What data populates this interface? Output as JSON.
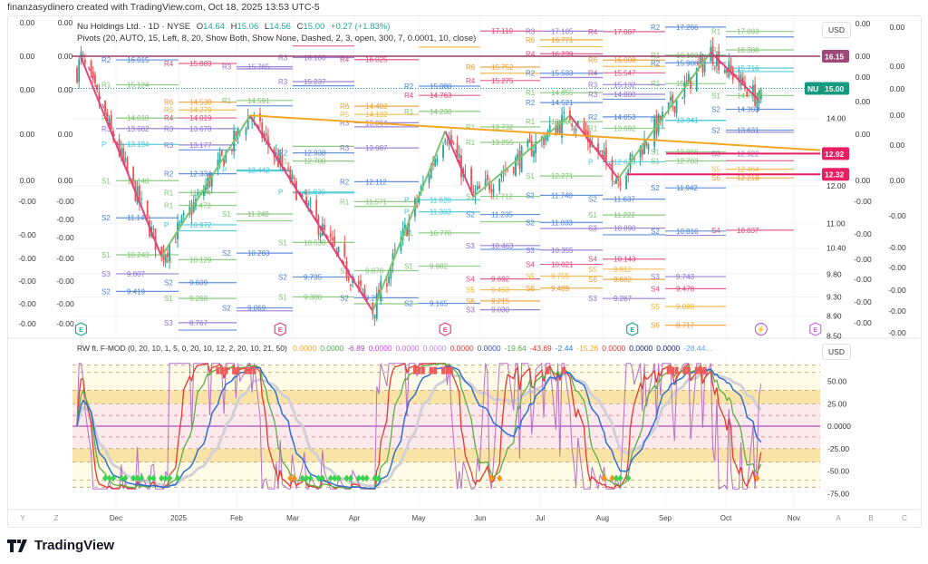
{
  "header": {
    "credit": "finanzasydinero created with TradingView.com, Oct 18, 2025 13:53 UTC-5"
  },
  "legend": {
    "symbol": "Nu Holdings Ltd. · 1D · NYSE",
    "o_label": "O",
    "o": "14.64",
    "h_label": "H",
    "h": "15.06",
    "l_label": "L",
    "l": "14.56",
    "c_label": "C",
    "c": "15.00",
    "change": "+0.27 (+1.83%)",
    "pivots": "Pivots (20, AUTO, 15, Left, 8, 20, Show Both, Show None, Dashed, 2, 3, open, 300, 7, 0.0001, 10, close)"
  },
  "indicator": {
    "name": "RW ft. F-MOD (0, 20, 10, 1, 5, 0, 20, 10, 12, 2, 20, 10, 21, 50)",
    "values": [
      {
        "v": "0.0000",
        "color": "#f5a623"
      },
      {
        "v": "0.0000",
        "color": "#4caf50"
      },
      {
        "v": "-6.89",
        "color": "#9c4fb0"
      },
      {
        "v": "0.0000",
        "color": "#e040fb"
      },
      {
        "v": "0.0000",
        "color": "#c86be8"
      },
      {
        "v": "0.0000",
        "color": "#b98ce0"
      },
      {
        "v": "0.0000",
        "color": "#e53935"
      },
      {
        "v": "0.0000",
        "color": "#3f51b5"
      },
      {
        "v": "-19.64",
        "color": "#4caf50"
      },
      {
        "v": "-43.69",
        "color": "#e53935"
      },
      {
        "v": "-2.44",
        "color": "#2f7de1"
      },
      {
        "v": "-15.26",
        "color": "#f5a623"
      },
      {
        "v": "0.0000",
        "color": "#e53935"
      },
      {
        "v": "0.0000",
        "color": "#1a237e"
      },
      {
        "v": "0.0000",
        "color": "#1a237e"
      },
      {
        "v": "-28.44...",
        "color": "#64a0e8"
      }
    ],
    "axis": [
      "50.00",
      "25.00",
      "0.0000",
      "-25.00",
      "-50.00",
      "-75.00"
    ],
    "currency": "USD"
  },
  "price_axis": {
    "currency": "USD",
    "labels": [
      "14.00",
      "12.00",
      "11.00",
      "10.40",
      "9.80",
      "9.30",
      "8.90",
      "8.50"
    ],
    "badges": [
      {
        "text": "16.15",
        "color": "#a0487a"
      },
      {
        "symbol": "NU",
        "text": "15.00",
        "color": "#159a80"
      },
      {
        "text": "12.92",
        "color": "#e91e63"
      },
      {
        "text": "12.32",
        "color": "#e91e63"
      }
    ]
  },
  "extra_scales": {
    "left1": [
      "0.00",
      "0.00",
      "0.00",
      "0.00",
      "0.00",
      "-0.00",
      "-0.00",
      "-0.00",
      "-0.00",
      "-0.00",
      "-0.00"
    ],
    "left2": [
      "0.00",
      "0.00",
      "0.00",
      "0.00",
      "0.00",
      "-0.00",
      "-0.00",
      "-0.00",
      "-0.00",
      "-0.00",
      "-0.00",
      "-0.00"
    ],
    "right1": [
      "0.00",
      "0.00",
      "0.00",
      "0.00",
      "0.00",
      "0.00",
      "-0.00",
      "-0.00",
      "-0.00",
      "-0.00",
      "-0.00",
      "-0.00"
    ],
    "right2": [
      "0.00",
      "0.00",
      "0.00",
      "0.00",
      "0.00",
      "0.00",
      "-0.00",
      "-0.00",
      "-0.00",
      "-0.00",
      "-0.00",
      "-0.00"
    ]
  },
  "time_axis": [
    "Y",
    "Z",
    "Dec",
    "2025",
    "Feb",
    "Mar",
    "Apr",
    "May",
    "Jun",
    "Jul",
    "Aug",
    "Sep",
    "Oct",
    "Nov",
    "A",
    "B",
    "C"
  ],
  "brand": "TradingView",
  "colors": {
    "up": "#26a69a",
    "down": "#ef5350",
    "zig_up": "#7cc46f",
    "zig_down": "#e0457b",
    "trend": "#f5a623",
    "resistance": "#9c3d6b",
    "support": "#e91e63"
  },
  "chart_data": {
    "type": "candlestick",
    "scale": "log",
    "ylim": [
      8.5,
      17.5
    ],
    "xlim": [
      "2024-11-08",
      "2025-11-15"
    ],
    "swing_points": [
      {
        "date": "2024-11-11",
        "price": 15.6
      },
      {
        "date": "2024-11-13",
        "price": 16.1
      },
      {
        "date": "2024-12-23",
        "price": 10.2
      },
      {
        "date": "2025-02-05",
        "price": 14.1
      },
      {
        "date": "2025-04-07",
        "price": 9.0
      },
      {
        "date": "2025-05-13",
        "price": 13.6
      },
      {
        "date": "2025-05-27",
        "price": 11.7
      },
      {
        "date": "2025-07-14",
        "price": 14.1
      },
      {
        "date": "2025-08-07",
        "price": 12.2
      },
      {
        "date": "2025-09-22",
        "price": 16.3
      },
      {
        "date": "2025-10-16",
        "price": 14.6
      },
      {
        "date": "2025-10-17",
        "price": 15.0
      }
    ],
    "last": {
      "open": 14.64,
      "high": 15.06,
      "low": 14.56,
      "close": 15.0
    },
    "horizontal_levels": [
      16.15,
      12.92,
      12.32
    ],
    "trendline": [
      {
        "date": "2025-02-05",
        "price": 14.1
      },
      {
        "date": "2025-11-12",
        "price": 13.0
      }
    ],
    "pivot_months": [
      "Nov",
      "Dec",
      "Jan",
      "Feb",
      "Mar",
      "Apr",
      "May",
      "Jun",
      "Jul",
      "Aug",
      "Sep",
      "Oct"
    ],
    "pivots": [
      {
        "m": 1,
        "l": "R3",
        "v": 16.969
      },
      {
        "m": 1,
        "l": "R2",
        "v": 16.015
      },
      {
        "m": 1,
        "l": "R1",
        "v": 15.124
      },
      {
        "m": 1,
        "l": "R1",
        "v": 14.018
      },
      {
        "m": 1,
        "l": "R3",
        "v": 13.682
      },
      {
        "m": 1,
        "l": "P",
        "v": 13.194
      },
      {
        "m": 1,
        "l": "S1",
        "v": 12.14
      },
      {
        "m": 1,
        "l": "S2",
        "v": 11.149
      },
      {
        "m": 1,
        "l": "S1",
        "v": 10.243
      },
      {
        "m": 1,
        "l": "S3",
        "v": 9.807
      },
      {
        "m": 1,
        "l": "S2",
        "v": 9.419
      },
      {
        "m": 2,
        "l": "R4",
        "v": 15.883
      },
      {
        "m": 2,
        "l": "R6",
        "v": 14.539
      },
      {
        "m": 2,
        "l": "R5",
        "v": 14.279
      },
      {
        "m": 2,
        "l": "R4",
        "v": 14.019
      },
      {
        "m": 2,
        "l": "R3",
        "v": 13.678
      },
      {
        "m": 2,
        "l": "R3",
        "v": 13.177
      },
      {
        "m": 2,
        "l": "R2",
        "v": 13.029
      },
      {
        "m": 2,
        "l": "R2",
        "v": 12.334
      },
      {
        "m": 2,
        "l": "R1",
        "v": 11.814
      },
      {
        "m": 2,
        "l": "R1",
        "v": 11.473
      },
      {
        "m": 2,
        "l": "P",
        "v": 10.972
      },
      {
        "m": 2,
        "l": "P",
        "v": 10.824
      },
      {
        "m": 2,
        "l": "S1",
        "v": 10.129
      },
      {
        "m": 2,
        "l": "S2",
        "v": 9.609
      },
      {
        "m": 2,
        "l": "S1",
        "v": 9.268
      },
      {
        "m": 2,
        "l": "S3",
        "v": 8.767
      },
      {
        "m": 2,
        "l": "S2",
        "v": 8.619
      },
      {
        "m": 3,
        "l": "R4",
        "v": 16.969
      },
      {
        "m": 3,
        "l": "R3",
        "v": 15.765
      },
      {
        "m": 3,
        "l": "R3",
        "v": 15.692
      },
      {
        "m": 3,
        "l": "R1",
        "v": 14.591
      },
      {
        "m": 3,
        "l": "R2",
        "v": 14.415
      },
      {
        "m": 3,
        "l": "P",
        "v": 12.442
      },
      {
        "m": 3,
        "l": "P",
        "v": 12.413
      },
      {
        "m": 3,
        "l": "S1",
        "v": 11.248
      },
      {
        "m": 3,
        "l": "S1",
        "v": 11.072
      },
      {
        "m": 3,
        "l": "S2",
        "v": 10.283
      },
      {
        "m": 3,
        "l": "S2",
        "v": 9.069
      },
      {
        "m": 3,
        "l": "S3",
        "v": 9.008
      },
      {
        "m": 4,
        "l": "R4",
        "v": 16.535
      },
      {
        "m": 4,
        "l": "R3",
        "v": 16.1
      },
      {
        "m": 4,
        "l": "R3",
        "v": 15.237
      },
      {
        "m": 4,
        "l": "R2",
        "v": 15.09
      },
      {
        "m": 4,
        "l": "R2",
        "v": 12.938
      },
      {
        "m": 4,
        "l": "R1",
        "v": 13.135
      },
      {
        "m": 4,
        "l": "R1",
        "v": 12.7
      },
      {
        "m": 4,
        "l": "P",
        "v": 11.83
      },
      {
        "m": 4,
        "l": "P",
        "v": 11.8
      },
      {
        "m": 4,
        "l": "S1",
        "v": 10.538
      },
      {
        "m": 4,
        "l": "S2",
        "v": 9.735
      },
      {
        "m": 4,
        "l": "S1",
        "v": 9.3
      },
      {
        "m": 5,
        "l": "R4",
        "v": 16.025
      },
      {
        "m": 5,
        "l": "R6",
        "v": 14.402
      },
      {
        "m": 5,
        "l": "R5",
        "v": 14.132
      },
      {
        "m": 5,
        "l": "R3",
        "v": 13.864
      },
      {
        "m": 5,
        "l": "R3",
        "v": 13.735
      },
      {
        "m": 5,
        "l": "R3",
        "v": 13.087
      },
      {
        "m": 5,
        "l": "R2",
        "v": 12.112
      },
      {
        "m": 5,
        "l": "R1",
        "v": 11.571
      },
      {
        "m": 5,
        "l": "R1",
        "v": 11.445
      },
      {
        "m": 5,
        "l": "S1",
        "v": 9.878
      },
      {
        "m": 5,
        "l": "S2",
        "v": 9.281
      },
      {
        "m": 5,
        "l": "S1",
        "v": 9.155
      },
      {
        "m": 6,
        "l": "R5",
        "v": 16.493
      },
      {
        "m": 6,
        "l": "R2",
        "v": 15.08
      },
      {
        "m": 6,
        "l": "R4",
        "v": 14.763
      },
      {
        "m": 6,
        "l": "R1",
        "v": 14.23
      },
      {
        "m": 6,
        "l": "P",
        "v": 11.62
      },
      {
        "m": 6,
        "l": "P",
        "v": 11.303
      },
      {
        "m": 6,
        "l": "S1",
        "v": 10.77
      },
      {
        "m": 6,
        "l": "S1",
        "v": 9.982
      },
      {
        "m": 6,
        "l": "S2",
        "v": 9.165
      },
      {
        "m": 7,
        "l": "R4",
        "v": 17.11
      },
      {
        "m": 7,
        "l": "R6",
        "v": 15.752
      },
      {
        "m": 7,
        "l": "R5",
        "v": 15.533
      },
      {
        "m": 7,
        "l": "R4",
        "v": 15.275
      },
      {
        "m": 7,
        "l": "R1",
        "v": 13.732
      },
      {
        "m": 7,
        "l": "R1",
        "v": 13.255
      },
      {
        "m": 7,
        "l": "S1",
        "v": 11.712
      },
      {
        "m": 7,
        "l": "S2",
        "v": 11.235
      },
      {
        "m": 7,
        "l": "S1",
        "v": 11.05
      },
      {
        "m": 7,
        "l": "S3",
        "v": 10.463
      },
      {
        "m": 7,
        "l": "S2",
        "v": 10.37
      },
      {
        "m": 7,
        "l": "S4",
        "v": 9.692
      },
      {
        "m": 7,
        "l": "S5",
        "v": 9.453
      },
      {
        "m": 7,
        "l": "S6",
        "v": 9.215
      },
      {
        "m": 7,
        "l": "S3",
        "v": 9.03
      },
      {
        "m": 8,
        "l": "R3",
        "v": 17.105
      },
      {
        "m": 8,
        "l": "R6",
        "v": 16.771
      },
      {
        "m": 8,
        "l": "R5",
        "v": 16.505
      },
      {
        "m": 8,
        "l": "R4",
        "v": 16.239
      },
      {
        "m": 8,
        "l": "R2",
        "v": 15.533
      },
      {
        "m": 8,
        "l": "R3",
        "v": 15.38
      },
      {
        "m": 8,
        "l": "R1",
        "v": 14.855
      },
      {
        "m": 8,
        "l": "R2",
        "v": 14.521
      },
      {
        "m": 8,
        "l": "R1",
        "v": 13.9
      },
      {
        "m": 8,
        "l": "S1",
        "v": 12.271
      },
      {
        "m": 8,
        "l": "S2",
        "v": 11.74
      },
      {
        "m": 8,
        "l": "S2",
        "v": 11.033
      },
      {
        "m": 8,
        "l": "S3",
        "v": 10.88
      },
      {
        "m": 8,
        "l": "S3",
        "v": 10.355
      },
      {
        "m": 8,
        "l": "S4",
        "v": 10.021
      },
      {
        "m": 8,
        "l": "S5",
        "v": 9.755
      },
      {
        "m": 8,
        "l": "S6",
        "v": 9.489
      },
      {
        "m": 9,
        "l": "R4",
        "v": 17.087
      },
      {
        "m": 9,
        "l": "R6",
        "v": 16.008
      },
      {
        "m": 9,
        "l": "R5",
        "v": 15.777
      },
      {
        "m": 9,
        "l": "R4",
        "v": 15.547
      },
      {
        "m": 9,
        "l": "R3",
        "v": 15.132
      },
      {
        "m": 9,
        "l": "R3",
        "v": 14.8
      },
      {
        "m": 9,
        "l": "R2",
        "v": 14.634
      },
      {
        "m": 9,
        "l": "R2",
        "v": 14.053
      },
      {
        "m": 9,
        "l": "R1",
        "v": 13.692
      },
      {
        "m": 9,
        "l": "P",
        "v": 12.678
      },
      {
        "m": 9,
        "l": "S2",
        "v": 11.637
      },
      {
        "m": 9,
        "l": "S1",
        "v": 11.222
      },
      {
        "m": 9,
        "l": "S3",
        "v": 10.89
      },
      {
        "m": 9,
        "l": "S2",
        "v": 10.724
      },
      {
        "m": 9,
        "l": "S4",
        "v": 10.143
      },
      {
        "m": 9,
        "l": "S5",
        "v": 9.912
      },
      {
        "m": 9,
        "l": "S6",
        "v": 9.682
      },
      {
        "m": 9,
        "l": "S3",
        "v": 9.267
      },
      {
        "m": 10,
        "l": "R2",
        "v": 17.266
      },
      {
        "m": 10,
        "l": "R1",
        "v": 16.192
      },
      {
        "m": 10,
        "l": "R2",
        "v": 15.908
      },
      {
        "m": 10,
        "l": "R1",
        "v": 15.167
      },
      {
        "m": 10,
        "l": "P",
        "v": 13.941
      },
      {
        "m": 10,
        "l": "P",
        "v": 13.935
      },
      {
        "m": 10,
        "l": "S1",
        "v": 12.968
      },
      {
        "m": 10,
        "l": "S1",
        "v": 12.703
      },
      {
        "m": 10,
        "l": "S2",
        "v": 11.942
      },
      {
        "m": 10,
        "l": "S2",
        "v": 10.816
      },
      {
        "m": 10,
        "l": "S3",
        "v": 10.71
      },
      {
        "m": 10,
        "l": "S3",
        "v": 9.743
      },
      {
        "m": 10,
        "l": "S4",
        "v": 9.478
      },
      {
        "m": 10,
        "l": "S5",
        "v": 9.098
      },
      {
        "m": 10,
        "l": "S6",
        "v": 8.717
      },
      {
        "m": 11,
        "l": "R1",
        "v": 17.093
      },
      {
        "m": 11,
        "l": "R2",
        "v": 16.88
      },
      {
        "m": 11,
        "l": "R1",
        "v": 16.388
      },
      {
        "m": 11,
        "l": "P",
        "v": 15.716
      },
      {
        "m": 11,
        "l": "P",
        "v": 15.592
      },
      {
        "m": 11,
        "l": "S1",
        "v": 14.76
      },
      {
        "m": 11,
        "l": "S2",
        "v": 14.303
      },
      {
        "m": 11,
        "l": "S2",
        "v": 13.631
      },
      {
        "m": 11,
        "l": "S3",
        "v": 13.567
      },
      {
        "m": 11,
        "l": "S3",
        "v": 12.922
      },
      {
        "m": 11,
        "l": "S4",
        "v": 12.71
      },
      {
        "m": 11,
        "l": "S5",
        "v": 12.464
      },
      {
        "m": 11,
        "l": "S6",
        "v": 12.218
      },
      {
        "m": 11,
        "l": "S4",
        "v": 10.837
      }
    ],
    "events": [
      {
        "type": "earnings",
        "date": "2024-11-13"
      },
      {
        "type": "earnings",
        "date": "2025-02-20"
      },
      {
        "type": "earnings",
        "date": "2025-05-13"
      },
      {
        "type": "earnings",
        "date": "2025-08-14"
      },
      {
        "type": "dividend",
        "date": "2025-10-17"
      },
      {
        "type": "earnings",
        "date": "2025-11-13"
      }
    ]
  }
}
